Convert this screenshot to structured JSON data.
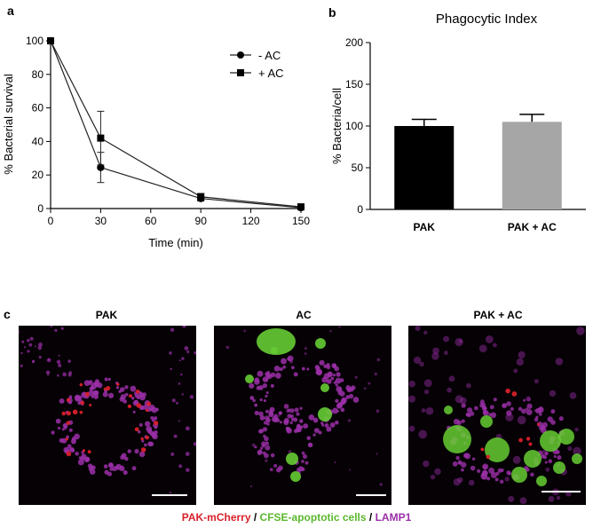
{
  "panel_labels": {
    "a": "a",
    "b": "b",
    "c": "c"
  },
  "colors": {
    "line": "#222222",
    "bar_pak": "#000000",
    "bar_pak_ac": "#a6a6a6",
    "mcherry": "#d8202a",
    "cfse": "#66cc33",
    "lamp1": "#9b2fa8"
  },
  "chart_data": [
    {
      "type": "line",
      "title": "",
      "xlabel": "Time (min)",
      "ylabel": "% Bacterial survival",
      "x": [
        0,
        30,
        90,
        150
      ],
      "xlim": [
        0,
        150
      ],
      "ylim": [
        0,
        100
      ],
      "xticks": [
        0,
        30,
        60,
        90,
        120,
        150
      ],
      "yticks": [
        0,
        20,
        40,
        60,
        80,
        100
      ],
      "legend_position": "top-right",
      "series": [
        {
          "name": "- AC",
          "marker": "circle",
          "values": [
            100,
            24.5,
            6,
            0.5
          ],
          "error": [
            0,
            9,
            1.5,
            0.5
          ]
        },
        {
          "name": "+ AC",
          "marker": "square",
          "values": [
            100,
            42,
            7,
            1
          ],
          "error": [
            0,
            16,
            2,
            0.5
          ]
        }
      ]
    },
    {
      "type": "bar",
      "title": "Phagocytic Index",
      "xlabel": "",
      "ylabel": "% Bacteria/cell",
      "categories": [
        "PAK",
        "PAK + AC"
      ],
      "values": [
        100,
        105
      ],
      "error": [
        8,
        9
      ],
      "ylim": [
        0,
        200
      ],
      "yticks": [
        0,
        50,
        100,
        150,
        200
      ]
    }
  ],
  "micrographs": {
    "titles": [
      "PAK",
      "AC",
      "PAK + AC"
    ],
    "legend": {
      "pak": "PAK-mCherry",
      "sep1": " / ",
      "cfse": "CFSE-apoptotic cells",
      "sep2": " / ",
      "lamp": "LAMP1"
    }
  }
}
